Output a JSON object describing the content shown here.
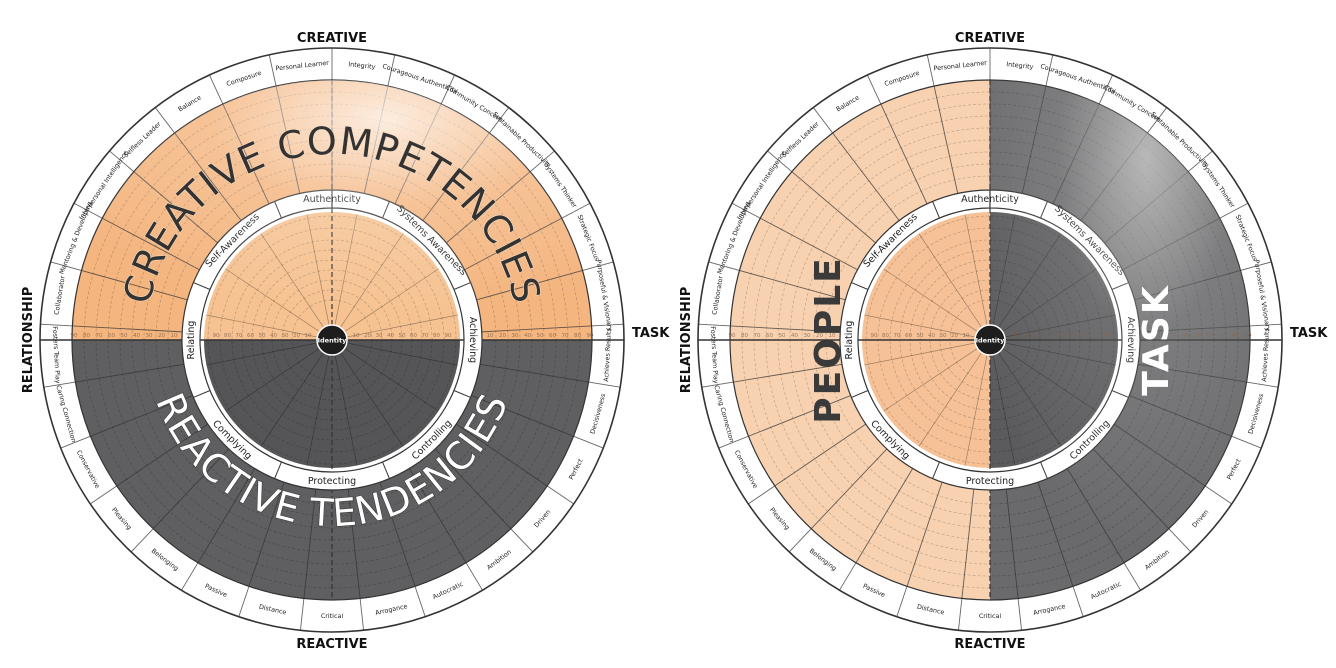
{
  "axes": {
    "top": "CREATIVE",
    "bottom": "REACTIVE",
    "left": "RELATIONSHIP",
    "right": "TASK"
  },
  "outer_segments": [
    {
      "label": "Integrity",
      "half": "creative"
    },
    {
      "label": "Courageous Authenticity",
      "half": "creative"
    },
    {
      "label": "Community Concern",
      "half": "creative"
    },
    {
      "label": "Sustainable Productivity",
      "half": "creative"
    },
    {
      "label": "Systems Thinker",
      "half": "creative"
    },
    {
      "label": "Strategic Focus",
      "half": "creative"
    },
    {
      "label": "Purposeful & Visionary",
      "half": "creative"
    },
    {
      "label": "Achieves Results",
      "half": "creative"
    },
    {
      "label": "Decisiveness",
      "half": "creative"
    },
    {
      "label": "Perfect",
      "half": "reactive"
    },
    {
      "label": "Driven",
      "half": "reactive"
    },
    {
      "label": "Ambition",
      "half": "reactive"
    },
    {
      "label": "Autocratic",
      "half": "reactive"
    },
    {
      "label": "Arrogance",
      "half": "reactive"
    },
    {
      "label": "Critical",
      "half": "reactive"
    },
    {
      "label": "Distance",
      "half": "reactive"
    },
    {
      "label": "Passive",
      "half": "reactive"
    },
    {
      "label": "Belonging",
      "half": "reactive"
    },
    {
      "label": "Pleasing",
      "half": "reactive"
    },
    {
      "label": "Conservative",
      "half": "reactive"
    },
    {
      "label": "Caring Connection",
      "half": "creative"
    },
    {
      "label": "Fosters Team Play",
      "half": "creative"
    },
    {
      "label": "Collaborator",
      "half": "creative"
    },
    {
      "label": "Mentoring & Developing",
      "half": "creative"
    },
    {
      "label": "Interpersonal Intelligence",
      "half": "creative"
    },
    {
      "label": "Selfless Leader",
      "half": "creative"
    },
    {
      "label": "Balance",
      "half": "creative"
    },
    {
      "label": "Composure",
      "half": "creative"
    },
    {
      "label": "Personal Learner",
      "half": "creative"
    }
  ],
  "inner_segments": [
    {
      "label": "Authenticity"
    },
    {
      "label": "Systems Awareness"
    },
    {
      "label": "Achieving"
    },
    {
      "label": "Controlling"
    },
    {
      "label": "Protecting"
    },
    {
      "label": "Complying"
    },
    {
      "label": "Relating"
    },
    {
      "label": "Self-Awareness"
    }
  ],
  "center_label": "Identity",
  "scale_ticks": [
    "10",
    "20",
    "30",
    "40",
    "50",
    "60",
    "70",
    "80",
    "90"
  ],
  "wheels": [
    {
      "name": "creative-reactive-wheel",
      "mode": "halves",
      "overlay_top": "CREATIVE COMPETENCIES",
      "overlay_bottom": "REACTIVE TENDENCIES"
    },
    {
      "name": "people-task-wheel",
      "mode": "sides",
      "overlay_left": "PEOPLE",
      "overlay_right": "TASK"
    }
  ],
  "colors": {
    "creative": "#f4b57f",
    "creative_inner": "#f6c291",
    "reactive": "#5f5f61",
    "reactive_inner": "#555557",
    "people_light": "#f8d2b0",
    "people_inner": "#f6c196",
    "task": "#6a6a6c",
    "task_inner": "#5b5b5d",
    "line": "#333333",
    "white": "#ffffff"
  }
}
